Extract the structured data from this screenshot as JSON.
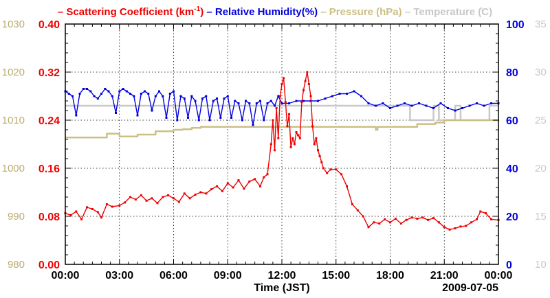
{
  "chart_data": {
    "type": "line",
    "legend": [
      {
        "key": "scat",
        "label": "Scattering Coefficient (km",
        "sup": "-1",
        "suffix": ")",
        "color": "#ee0000"
      },
      {
        "key": "rh",
        "label": "Relative Humidity(%)",
        "color": "#0000dd"
      },
      {
        "key": "pres",
        "label": "Pressure (hPa)",
        "color": "#cbbf86"
      },
      {
        "key": "temp",
        "label": "Temperature (̊C)",
        "color": "#c8c8c8"
      }
    ],
    "xlabel": "Time (JST)",
    "date_label": "2009-07-05",
    "x_ticks": [
      "00:00",
      "03:00",
      "06:00",
      "09:00",
      "12:00",
      "15:00",
      "18:00",
      "21:00",
      "00:00"
    ],
    "xlim_hours": [
      0,
      24
    ],
    "axes": {
      "pressure": {
        "ticks": [
          "980",
          "990",
          "1000",
          "1010",
          "1020",
          "1030"
        ],
        "range": [
          980,
          1030
        ],
        "color": "#b8ad72"
      },
      "scattering": {
        "ticks": [
          "0.00",
          "0.08",
          "0.16",
          "0.24",
          "0.32",
          "0.40"
        ],
        "range": [
          0,
          0.4
        ],
        "color": "#ee0000"
      },
      "humidity": {
        "ticks": [
          "0",
          "20",
          "40",
          "60",
          "80",
          "100"
        ],
        "range": [
          0,
          100
        ],
        "color": "#0000dd"
      },
      "temperature": {
        "ticks": [
          "10",
          "15",
          "20",
          "25",
          "30",
          "35"
        ],
        "range": [
          10,
          35
        ],
        "color": "#c8c8c8"
      }
    },
    "series": [
      {
        "name": "Scattering Coefficient",
        "axis": "scattering",
        "color": "#ee0000",
        "marker": true,
        "x": [
          0,
          0.3,
          0.6,
          0.9,
          1.2,
          1.5,
          1.8,
          2.0,
          2.3,
          2.6,
          3.0,
          3.3,
          3.6,
          3.9,
          4.2,
          4.5,
          4.8,
          5.1,
          5.4,
          5.7,
          6.0,
          6.3,
          6.6,
          6.9,
          7.2,
          7.5,
          7.8,
          8.1,
          8.4,
          8.7,
          9.0,
          9.3,
          9.6,
          9.9,
          10.2,
          10.5,
          10.8,
          11.0,
          11.2,
          11.4,
          11.5,
          11.6,
          11.7,
          11.8,
          11.9,
          12.0,
          12.1,
          12.2,
          12.3,
          12.4,
          12.5,
          12.6,
          12.7,
          12.8,
          12.9,
          13.0,
          13.1,
          13.2,
          13.3,
          13.4,
          13.5,
          13.6,
          13.7,
          13.8,
          13.9,
          14.0,
          14.1,
          14.2,
          14.3,
          14.5,
          14.7,
          15.0,
          15.3,
          15.6,
          15.9,
          16.2,
          16.5,
          16.8,
          17.1,
          17.4,
          17.7,
          18.0,
          18.3,
          18.6,
          18.9,
          19.2,
          19.5,
          19.8,
          20.1,
          20.4,
          20.7,
          21.0,
          21.3,
          21.6,
          21.9,
          22.2,
          22.5,
          22.8,
          23.0,
          23.3,
          23.6,
          24.0
        ],
        "y": [
          0.085,
          0.082,
          0.088,
          0.075,
          0.095,
          0.092,
          0.087,
          0.078,
          0.1,
          0.096,
          0.098,
          0.103,
          0.112,
          0.108,
          0.115,
          0.106,
          0.11,
          0.102,
          0.112,
          0.115,
          0.11,
          0.104,
          0.118,
          0.11,
          0.116,
          0.12,
          0.118,
          0.125,
          0.13,
          0.122,
          0.135,
          0.128,
          0.14,
          0.126,
          0.138,
          0.142,
          0.13,
          0.145,
          0.15,
          0.2,
          0.24,
          0.19,
          0.26,
          0.21,
          0.28,
          0.3,
          0.31,
          0.27,
          0.23,
          0.25,
          0.195,
          0.21,
          0.2,
          0.22,
          0.215,
          0.21,
          0.27,
          0.29,
          0.305,
          0.32,
          0.3,
          0.28,
          0.23,
          0.2,
          0.21,
          0.19,
          0.18,
          0.17,
          0.16,
          0.152,
          0.158,
          0.158,
          0.15,
          0.13,
          0.1,
          0.09,
          0.08,
          0.062,
          0.07,
          0.068,
          0.075,
          0.07,
          0.076,
          0.068,
          0.074,
          0.078,
          0.076,
          0.078,
          0.074,
          0.077,
          0.07,
          0.062,
          0.058,
          0.06,
          0.063,
          0.064,
          0.07,
          0.075,
          0.088,
          0.085,
          0.075,
          0.074
        ]
      },
      {
        "name": "Relative Humidity",
        "axis": "rh",
        "color": "#0000dd",
        "marker": true,
        "x": [
          0,
          0.2,
          0.4,
          0.6,
          0.8,
          1.0,
          1.2,
          1.4,
          1.6,
          1.8,
          2.0,
          2.2,
          2.4,
          2.6,
          2.8,
          3.0,
          3.2,
          3.4,
          3.6,
          3.8,
          4.0,
          4.2,
          4.4,
          4.6,
          4.8,
          5.0,
          5.2,
          5.4,
          5.6,
          5.8,
          6.0,
          6.2,
          6.4,
          6.6,
          6.8,
          7.0,
          7.2,
          7.4,
          7.6,
          7.8,
          8.0,
          8.2,
          8.4,
          8.6,
          8.8,
          9.0,
          9.2,
          9.4,
          9.6,
          9.8,
          10.0,
          10.2,
          10.4,
          10.6,
          10.8,
          11.0,
          11.2,
          11.4,
          11.6,
          11.8,
          12.0,
          12.4,
          12.8,
          13.2,
          13.6,
          14.0,
          14.4,
          14.8,
          15.2,
          15.6,
          16.0,
          16.4,
          16.8,
          17.2,
          17.6,
          18.0,
          18.4,
          18.8,
          19.2,
          19.6,
          20.0,
          20.4,
          20.8,
          21.2,
          21.6,
          22.0,
          22.4,
          22.8,
          23.2,
          23.6,
          24.0
        ],
        "y": [
          72,
          71,
          70,
          62,
          71,
          73,
          73,
          72,
          70,
          69,
          71,
          73,
          72,
          70,
          63,
          72,
          73,
          72,
          71,
          70,
          62,
          71,
          72,
          71,
          64,
          70,
          72,
          70,
          61,
          71,
          72,
          60,
          70,
          69,
          61,
          70,
          68,
          60,
          69,
          70,
          60,
          68,
          69,
          61,
          69,
          70,
          61,
          68,
          67,
          60,
          68,
          67,
          58,
          67,
          68,
          60,
          67,
          68,
          66,
          70,
          67,
          67,
          68,
          68,
          68,
          68,
          69,
          70,
          71,
          71,
          72,
          70,
          67,
          66,
          67,
          65,
          66,
          67,
          66,
          67,
          66,
          65,
          67,
          65,
          64,
          65,
          66,
          67,
          66,
          67,
          67
        ]
      },
      {
        "name": "Pressure",
        "axis": "pressure",
        "color": "#cbbf86",
        "marker": false,
        "step": true,
        "x": [
          0,
          2.2,
          2.3,
          3.0,
          4.0,
          5.0,
          6.0,
          6.5,
          7.0,
          7.5,
          8.0,
          11.5,
          17.1,
          17.2,
          17.3,
          19.5,
          20.5,
          21.0,
          23.5,
          24.0
        ],
        "y": [
          1006.4,
          1006.4,
          1007.2,
          1006.6,
          1007.0,
          1007.7,
          1008.0,
          1008.1,
          1008.4,
          1008.6,
          1008.6,
          1008.6,
          1008.6,
          1008.0,
          1008.6,
          1009.2,
          1009.5,
          1010.0,
          1010.0,
          1009.7
        ]
      },
      {
        "name": "Temperature",
        "axis": "temp",
        "color": "#c8c8c8",
        "marker": false,
        "step": true,
        "x": [
          0,
          19.0,
          19.1,
          20.3,
          20.4,
          20.6,
          20.7,
          21.5,
          21.6,
          21.8,
          21.9,
          23.4,
          23.5,
          24.0
        ],
        "y": [
          26.5,
          26.5,
          25.0,
          25.0,
          26.5,
          26.5,
          25.0,
          25.0,
          26.5,
          26.5,
          25.0,
          25.0,
          26.5,
          26.5
        ]
      }
    ]
  }
}
